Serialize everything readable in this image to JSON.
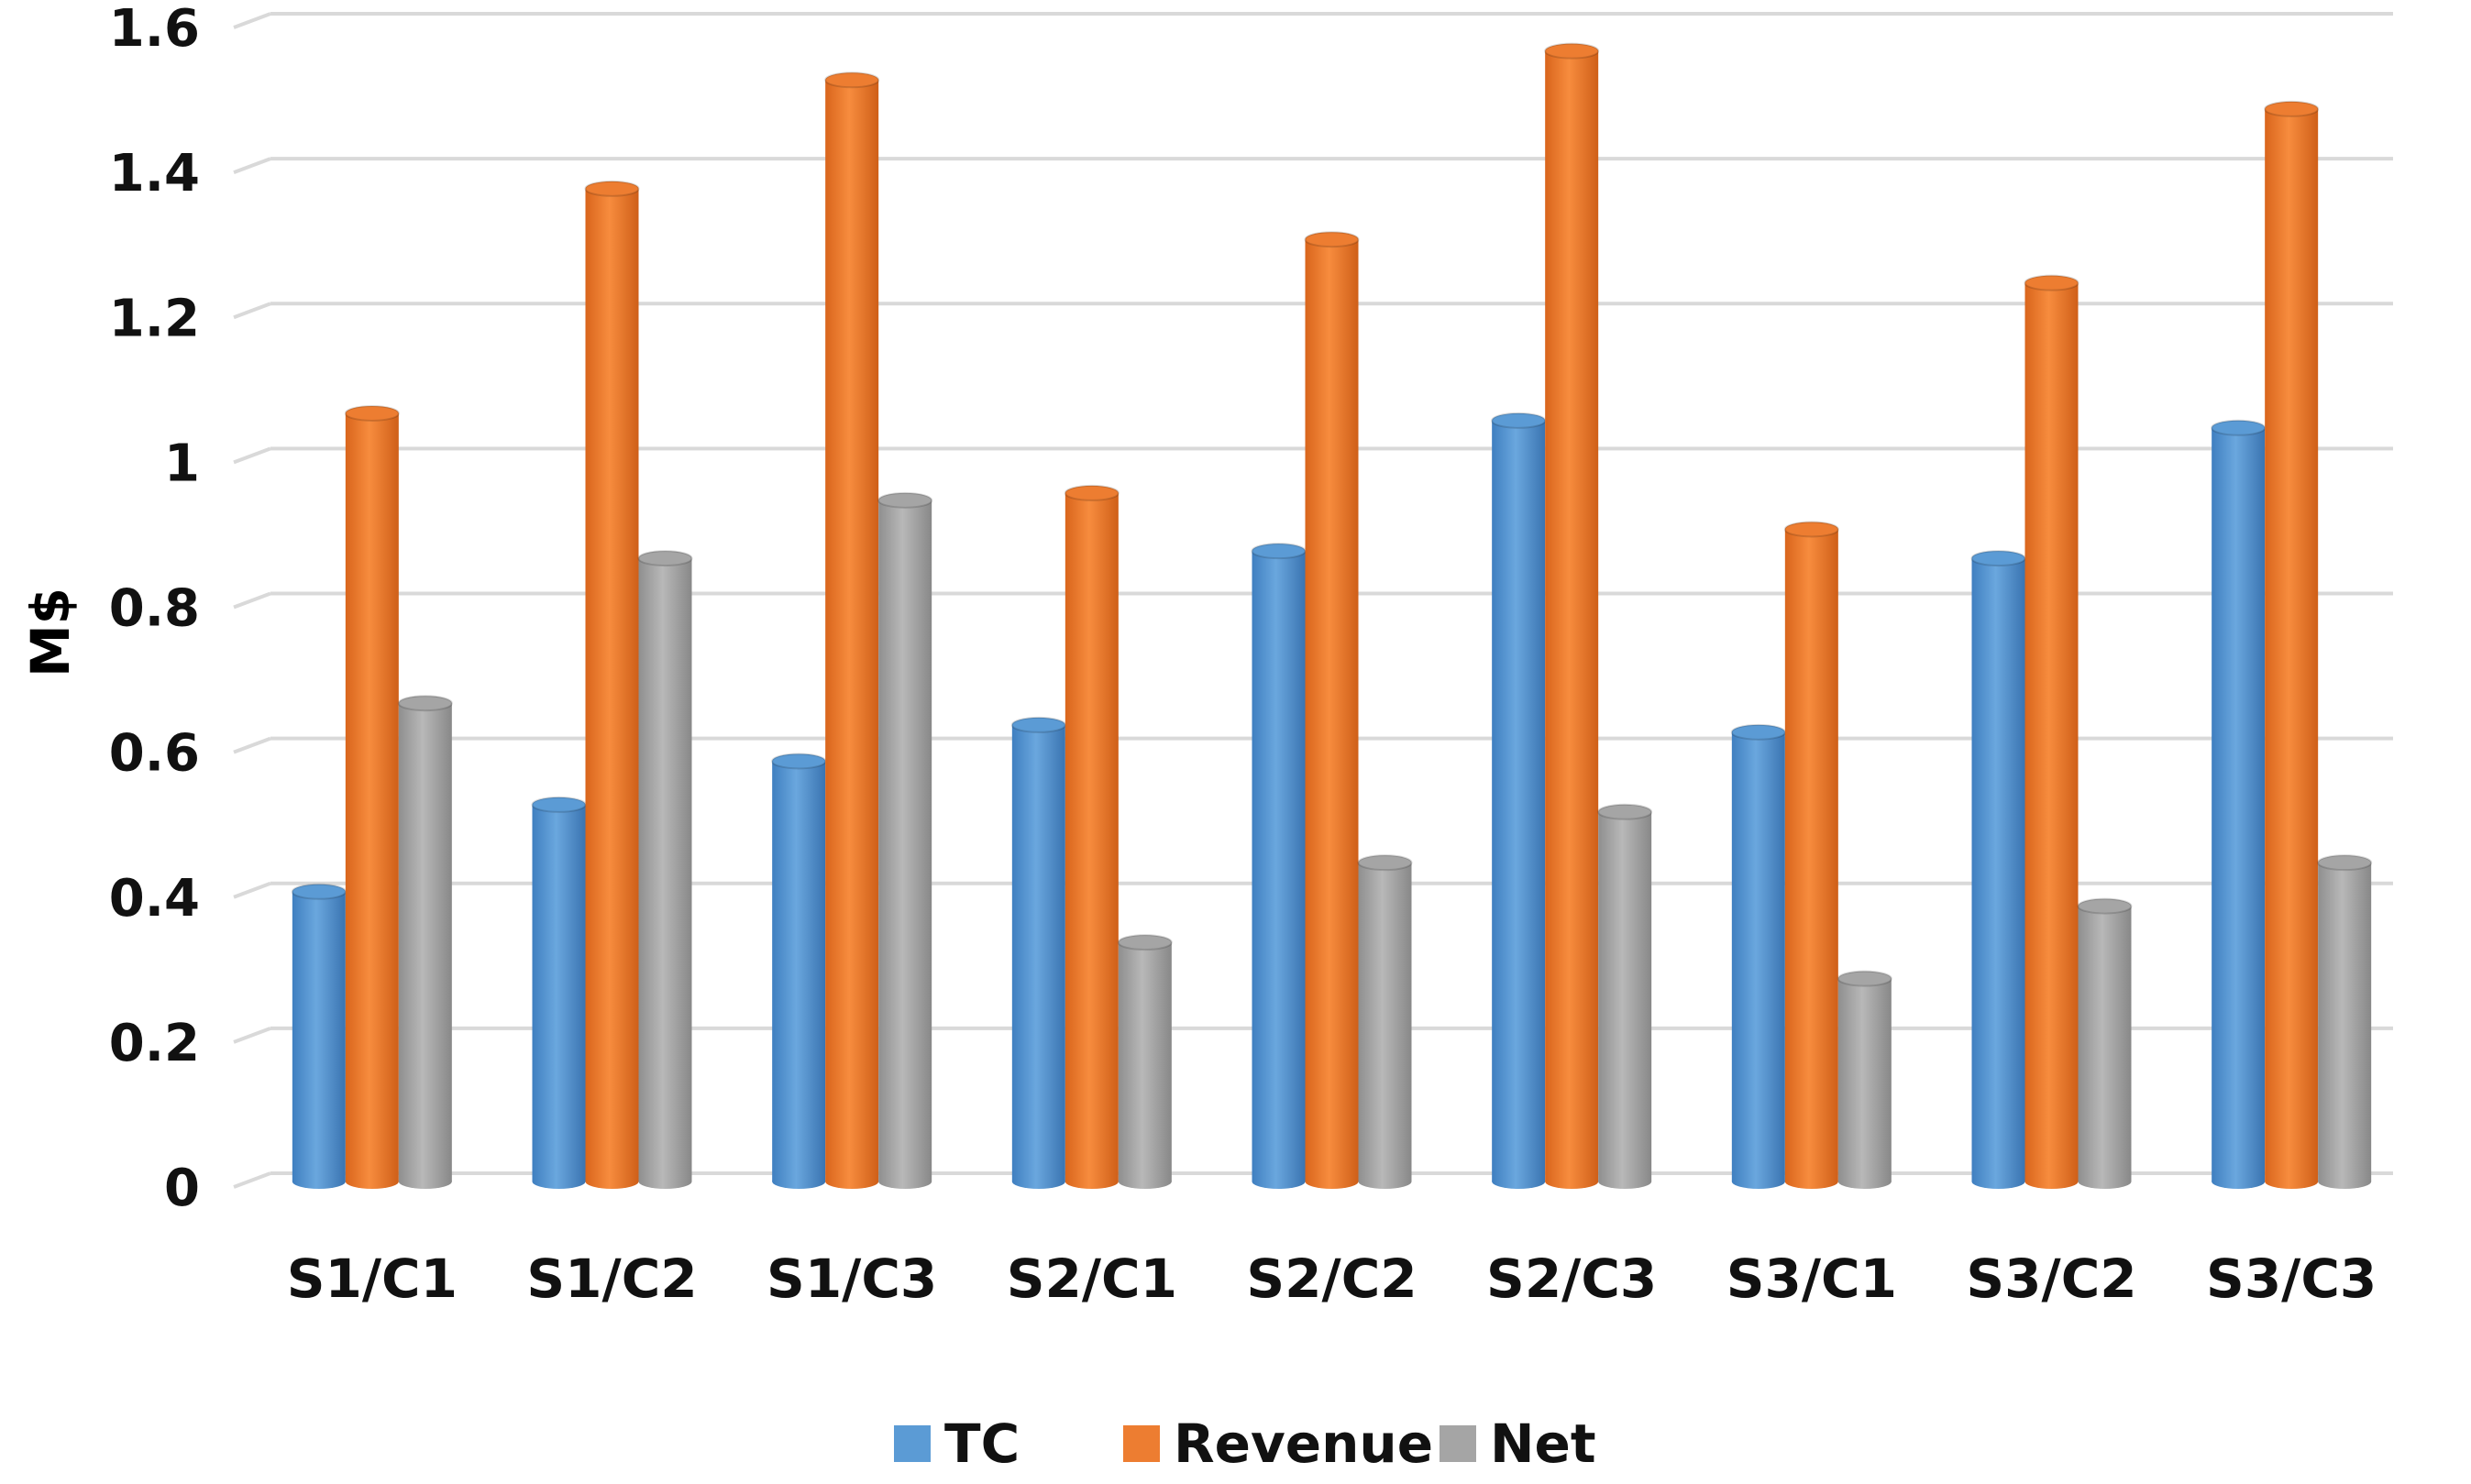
{
  "chart_data": {
    "type": "bar",
    "categories": [
      "S1/C1",
      "S1/C2",
      "S1/C3",
      "S2/C1",
      "S2/C2",
      "S2/C3",
      "S3/C1",
      "S3/C2",
      "S3/C3"
    ],
    "series": [
      {
        "name": "TC",
        "color": "#5b9bd5",
        "values": [
          0.4,
          0.52,
          0.58,
          0.63,
          0.87,
          1.05,
          0.62,
          0.86,
          1.04
        ]
      },
      {
        "name": "Revenue",
        "color": "#ed7d31",
        "values": [
          1.06,
          1.37,
          1.52,
          0.95,
          1.3,
          1.56,
          0.9,
          1.24,
          1.48
        ]
      },
      {
        "name": "Net",
        "color": "#a5a5a5",
        "values": [
          0.66,
          0.86,
          0.94,
          0.33,
          0.44,
          0.51,
          0.28,
          0.38,
          0.44
        ]
      }
    ],
    "ylabel": "M$",
    "xlabel": "",
    "ylim": [
      0,
      1.6
    ],
    "yticks": [
      "0",
      "0.2",
      "0.4",
      "0.6",
      "0.8",
      "1",
      "1.2",
      "1.4",
      "1.6"
    ],
    "grid": true,
    "legend_position": "bottom",
    "style": "3d-clustered-column"
  }
}
